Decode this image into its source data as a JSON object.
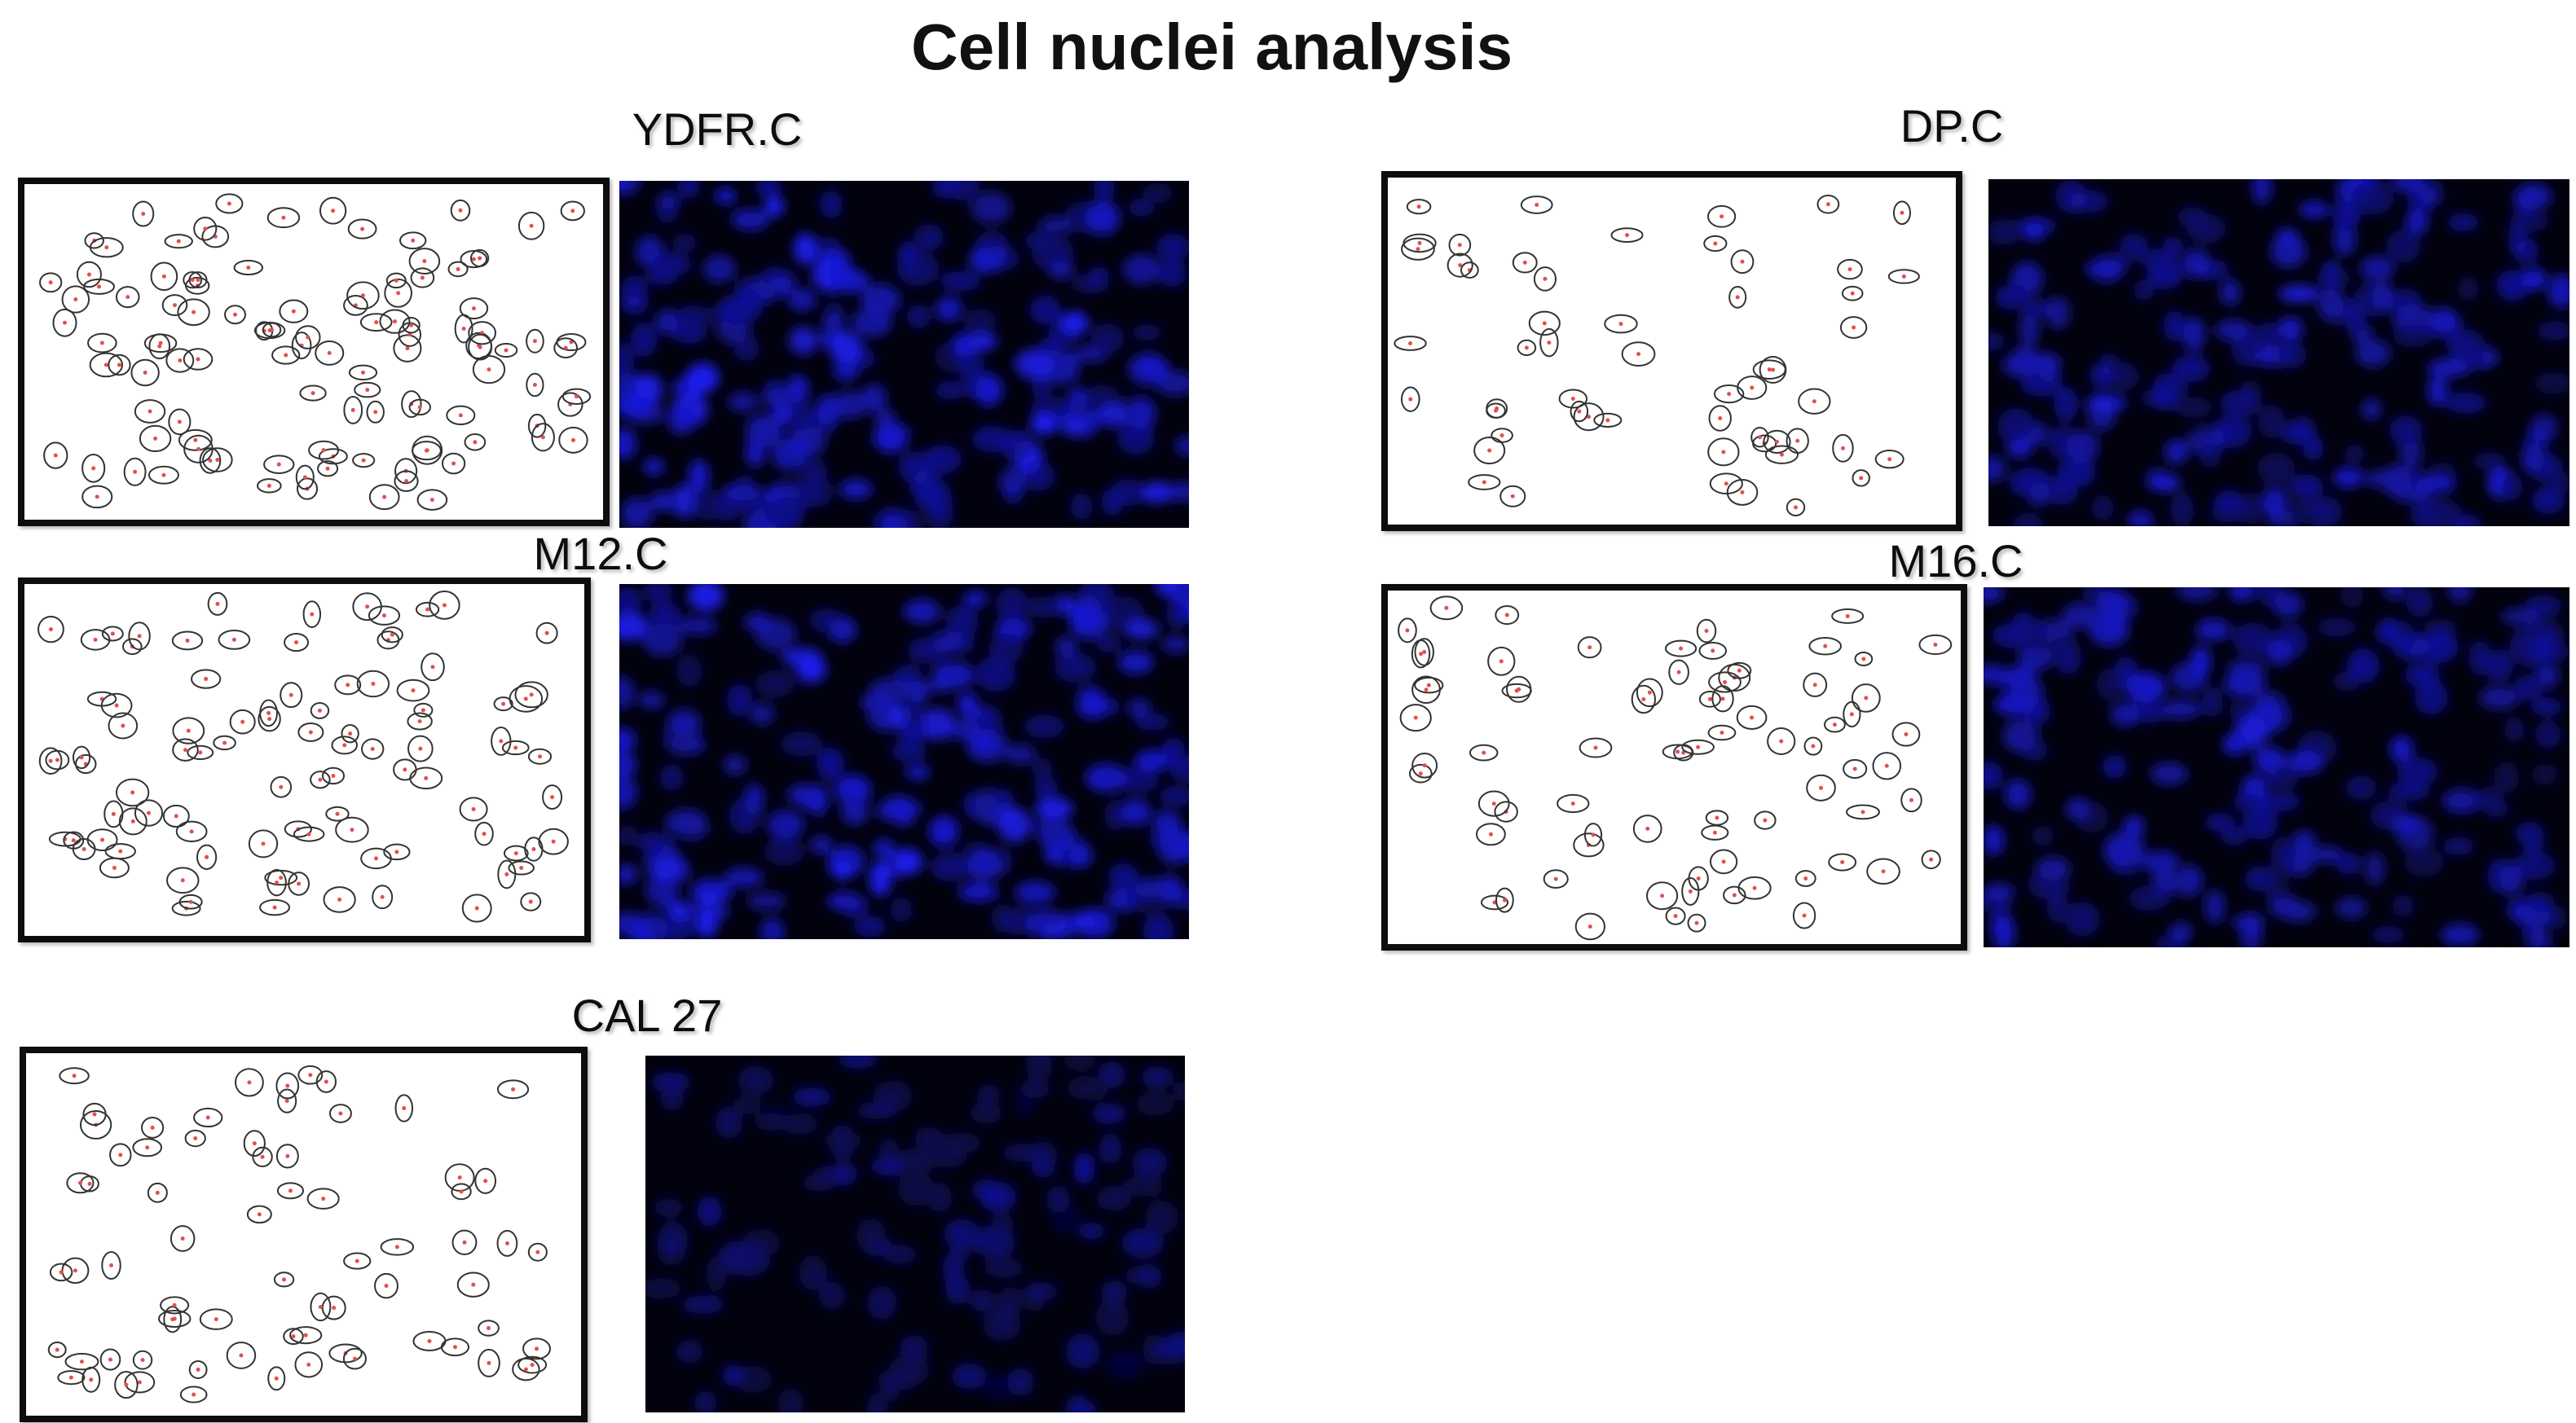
{
  "title": "Cell nuclei analysis",
  "panels": [
    {
      "label": "YDFR.C"
    },
    {
      "label": "M12.C"
    },
    {
      "label": "CAL 27"
    },
    {
      "label": "DP.C"
    },
    {
      "label": "M16.C"
    }
  ]
}
